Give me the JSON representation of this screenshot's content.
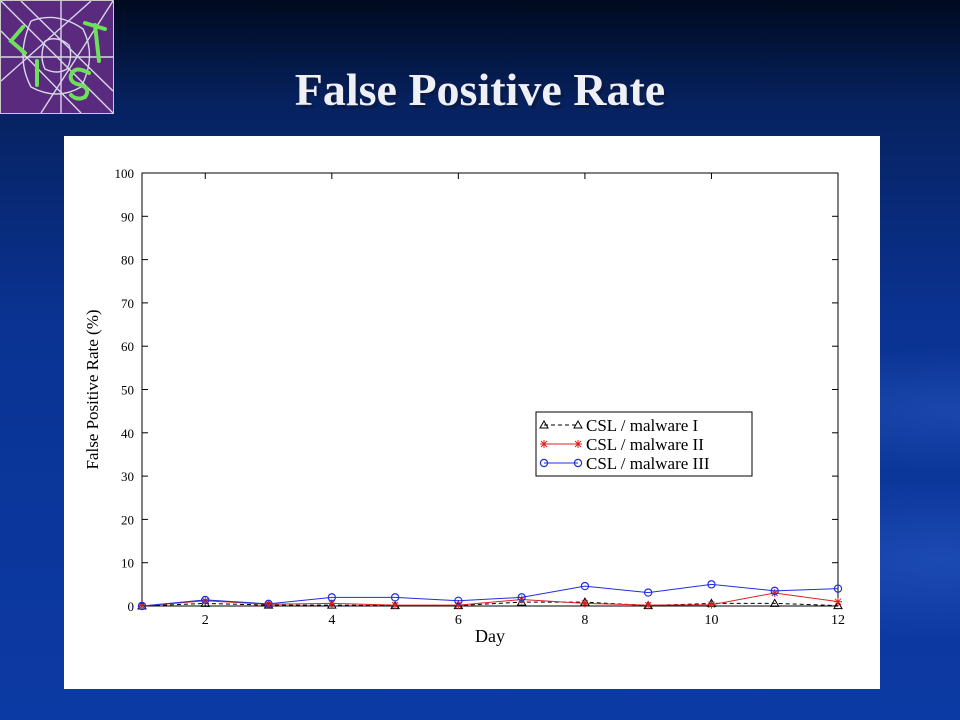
{
  "slide": {
    "title": "False Positive Rate"
  },
  "colors": {
    "series_1": "#000000",
    "series_2": "#e02020",
    "series_3": "#1f2fe0",
    "logo_bg": "#5a2a7e",
    "logo_accent": "#6ee05a"
  },
  "logo": {
    "icon": "lts-lab-logo-icon"
  },
  "chart_data": {
    "type": "line",
    "title": "",
    "xlabel": "Day",
    "ylabel": "False Positive Rate (%)",
    "xlim": [
      1,
      12
    ],
    "ylim": [
      0,
      100
    ],
    "xticks": [
      2,
      4,
      6,
      8,
      10,
      12
    ],
    "yticks": [
      0,
      10,
      20,
      30,
      40,
      50,
      60,
      70,
      80,
      90,
      100
    ],
    "grid": false,
    "legend_position": "middle-right",
    "x": [
      1,
      2,
      3,
      4,
      5,
      6,
      7,
      8,
      9,
      10,
      11,
      12
    ],
    "series": [
      {
        "name": "CSL / malware I",
        "line": "dashed",
        "marker": "triangle",
        "color": "#000000",
        "values": [
          0,
          0.6,
          0.2,
          0.2,
          0.1,
          0.1,
          0.9,
          0.9,
          0.1,
          0.6,
          0.6,
          0.1
        ]
      },
      {
        "name": "CSL / malware II",
        "line": "solid",
        "marker": "star",
        "color": "#e02020",
        "values": [
          0,
          1.2,
          0.4,
          0.6,
          0.2,
          0.2,
          1.5,
          0.6,
          0.2,
          0.3,
          3.0,
          1.0
        ]
      },
      {
        "name": "CSL / malware III",
        "line": "solid",
        "marker": "circle",
        "color": "#1f2fe0",
        "values": [
          0,
          1.4,
          0.5,
          2.0,
          2.0,
          1.2,
          2.0,
          4.6,
          3.1,
          5.0,
          3.5,
          4.0
        ]
      }
    ]
  }
}
